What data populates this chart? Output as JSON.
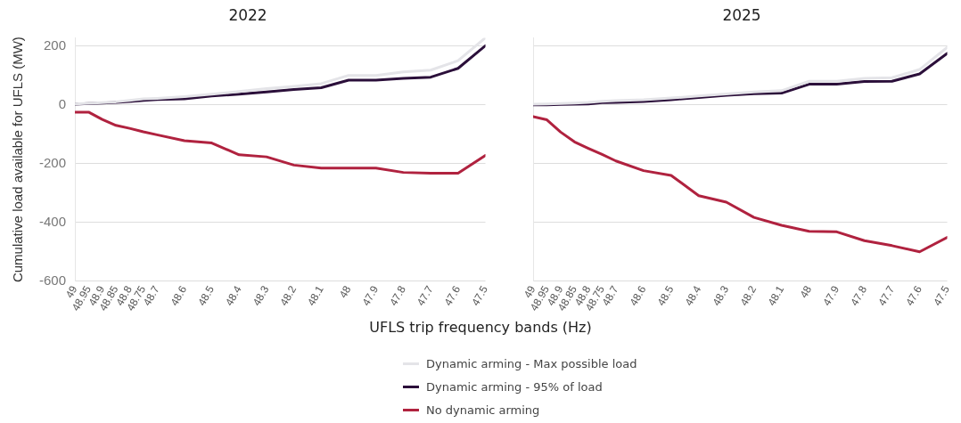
{
  "chart_data": [
    {
      "type": "line",
      "title": "2022",
      "ylabel": "Cumulative load available for UFLS (MW)",
      "xlabel": "UFLS trip frequency bands (Hz)",
      "x": [
        49,
        48.95,
        48.9,
        48.85,
        48.8,
        48.75,
        48.7,
        48.6,
        48.5,
        48.4,
        48.3,
        48.2,
        48.1,
        48,
        47.9,
        47.8,
        47.7,
        47.6,
        47.5
      ],
      "series": [
        {
          "name": "Dynamic arming - Max possible load",
          "color": "#e4e4e8",
          "values": [
            3,
            5,
            7,
            10,
            15,
            20,
            22,
            28,
            36,
            45,
            55,
            63,
            72,
            100,
            100,
            112,
            118,
            150,
            228
          ]
        },
        {
          "name": "Dynamic arming - 95% of load",
          "color": "#2b0f3a",
          "values": [
            2,
            4,
            6,
            8,
            11,
            15,
            18,
            20,
            30,
            36,
            44,
            52,
            58,
            84,
            84,
            90,
            94,
            124,
            201
          ]
        },
        {
          "name": "No dynamic arming",
          "color": "#b0223f",
          "values": [
            -25,
            -25,
            -50,
            -70,
            -80,
            -92,
            -102,
            -122,
            -130,
            -170,
            -177,
            -205,
            -215,
            -215,
            -215,
            -230,
            -233,
            -233,
            -172
          ]
        }
      ],
      "xlim": [
        49,
        47.5
      ],
      "xticks": [
        49,
        48.95,
        48.9,
        48.85,
        48.8,
        48.75,
        48.7,
        48.6,
        48.5,
        48.4,
        48.3,
        48.2,
        48.1,
        48,
        47.9,
        47.8,
        47.7,
        47.6,
        47.5
      ],
      "ylim": [
        -600,
        228
      ],
      "yticks": [
        -600,
        -400,
        -200,
        0,
        200
      ],
      "grid": "y",
      "legend": "bottom",
      "marker": "none",
      "line_style": "solid"
    },
    {
      "type": "line",
      "title": "2025",
      "x": [
        49,
        48.95,
        48.9,
        48.85,
        48.8,
        48.75,
        48.7,
        48.6,
        48.5,
        48.4,
        48.3,
        48.2,
        48.1,
        48,
        47.9,
        47.8,
        47.7,
        47.6,
        47.5
      ],
      "series": [
        {
          "color": "#e4e4e8",
          "values": [
            2,
            3,
            4,
            6,
            8,
            12,
            14,
            17,
            23,
            30,
            37,
            44,
            48,
            80,
            80,
            90,
            92,
            120,
            195
          ]
        },
        {
          "color": "#2b0f3a",
          "values": [
            0,
            0,
            1,
            2,
            3,
            7,
            8,
            11,
            17,
            25,
            32,
            38,
            40,
            70,
            70,
            79,
            80,
            105,
            175
          ]
        },
        {
          "color": "#b0223f",
          "values": [
            -40,
            -51,
            -93,
            -126,
            -148,
            -169,
            -191,
            -224,
            -240,
            -309,
            -331,
            -383,
            -410,
            -430,
            -432,
            -462,
            -479,
            -500,
            -451
          ]
        }
      ],
      "xlim": [
        49,
        47.5
      ],
      "xticks": [
        49,
        48.95,
        48.9,
        48.85,
        48.8,
        48.75,
        48.7,
        48.6,
        48.5,
        48.4,
        48.3,
        48.2,
        48.1,
        48,
        47.9,
        47.8,
        47.7,
        47.6,
        47.5
      ],
      "ylim": [
        -600,
        228
      ],
      "yticks": [
        -600,
        -400,
        -200,
        0,
        200
      ],
      "grid": "y",
      "tick_labels": "x",
      "marker": "none",
      "line_style": "solid"
    }
  ]
}
